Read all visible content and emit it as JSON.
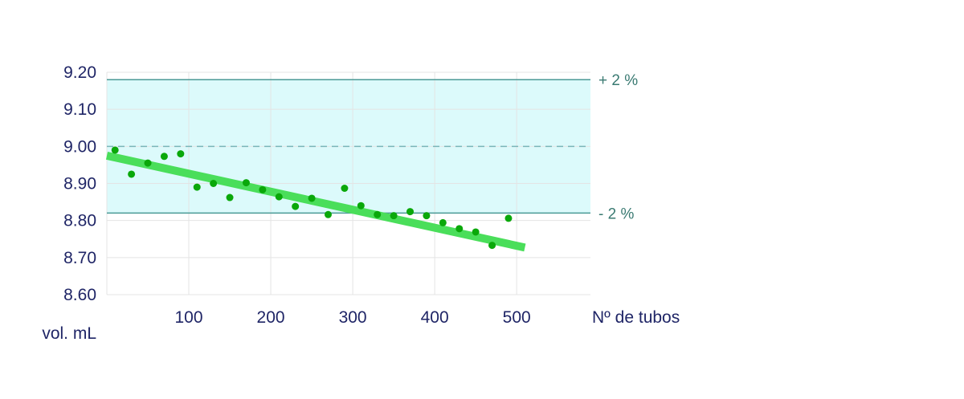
{
  "chart_data": {
    "type": "scatter",
    "xlabel": "Nº de tubos",
    "ylabel": "vol. mL",
    "xlim": [
      0,
      590
    ],
    "ylim": [
      8.6,
      9.2
    ],
    "x_ticks": [
      100,
      200,
      300,
      400,
      500
    ],
    "y_ticks": [
      "9.20",
      "9.10",
      "9.00",
      "8.90",
      "8.80",
      "8.70",
      "8.60"
    ],
    "grid": true,
    "nominal": 9.0,
    "upper_limit": {
      "value": 9.18,
      "label": "+ 2 %"
    },
    "lower_limit": {
      "value": 8.82,
      "label": "- 2 %"
    },
    "points": [
      {
        "x": 10,
        "y": 8.99
      },
      {
        "x": 30,
        "y": 8.925
      },
      {
        "x": 50,
        "y": 8.955
      },
      {
        "x": 70,
        "y": 8.973
      },
      {
        "x": 90,
        "y": 8.98
      },
      {
        "x": 110,
        "y": 8.89
      },
      {
        "x": 130,
        "y": 8.9
      },
      {
        "x": 150,
        "y": 8.862
      },
      {
        "x": 170,
        "y": 8.902
      },
      {
        "x": 190,
        "y": 8.883
      },
      {
        "x": 210,
        "y": 8.864
      },
      {
        "x": 230,
        "y": 8.838
      },
      {
        "x": 250,
        "y": 8.86
      },
      {
        "x": 270,
        "y": 8.816
      },
      {
        "x": 290,
        "y": 8.887
      },
      {
        "x": 310,
        "y": 8.84
      },
      {
        "x": 330,
        "y": 8.816
      },
      {
        "x": 350,
        "y": 8.813
      },
      {
        "x": 370,
        "y": 8.824
      },
      {
        "x": 390,
        "y": 8.813
      },
      {
        "x": 410,
        "y": 8.794
      },
      {
        "x": 430,
        "y": 8.778
      },
      {
        "x": 450,
        "y": 8.769
      },
      {
        "x": 470,
        "y": 8.733
      },
      {
        "x": 490,
        "y": 8.806
      }
    ],
    "trend": {
      "x1": 0,
      "y1": 8.975,
      "x2": 510,
      "y2": 8.727
    },
    "colors": {
      "band_fill": "#dcfafb",
      "limit_line": "#4a9a96",
      "nominal_line": "#7ab5b8",
      "grid": "#e4e4e4",
      "points": "#0aa80a",
      "trend": "#4ade5a",
      "tick_text": "#1f2566",
      "band_text": "#3a7a72"
    }
  }
}
